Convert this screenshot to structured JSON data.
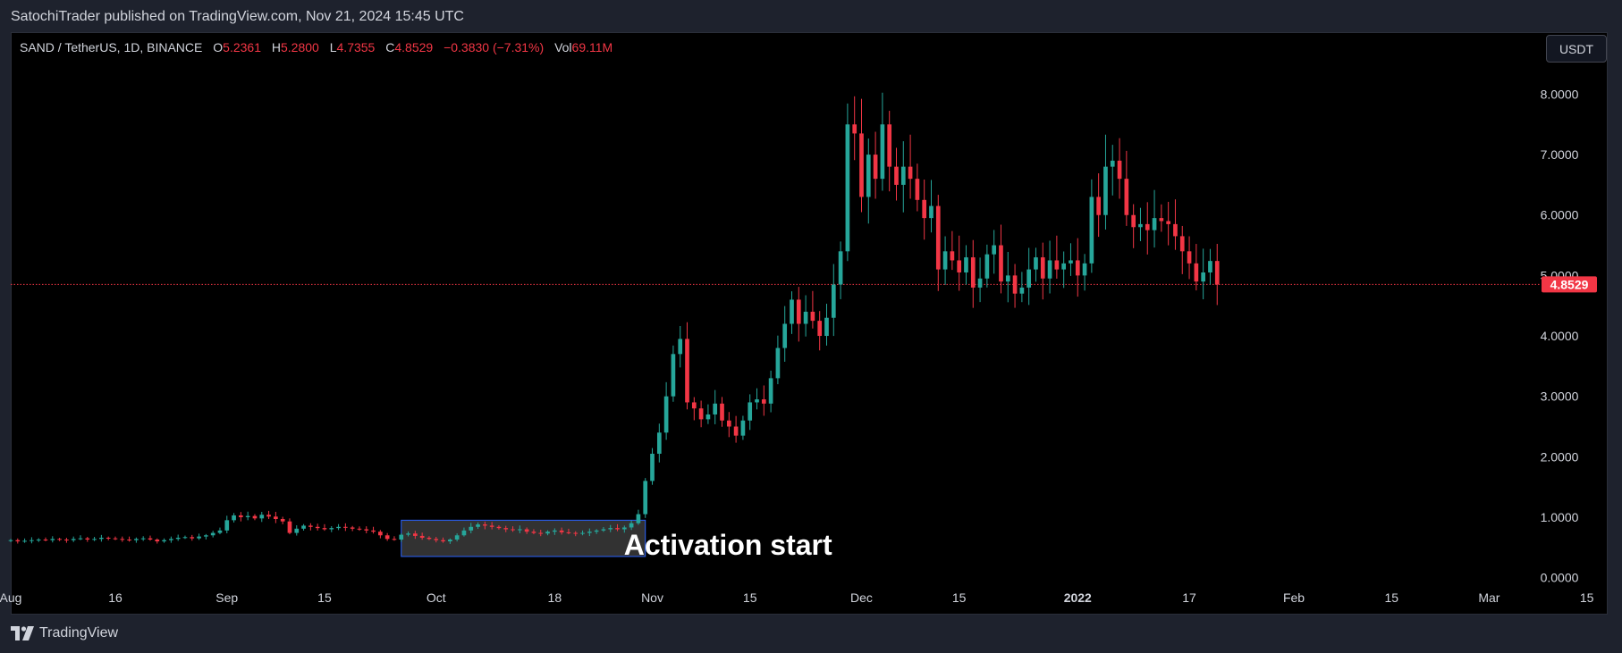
{
  "header": {
    "publisher": "SatochiTrader published on TradingView.com, Nov 21, 2024 15:45 UTC"
  },
  "legend": {
    "symbol": "SAND / TetherUS, 1D, BINANCE",
    "open_label": "O",
    "open": "5.2361",
    "high_label": "H",
    "high": "5.2800",
    "low_label": "L",
    "low": "4.7355",
    "close_label": "C",
    "close": "4.8529",
    "change": "−0.3830 (−7.31%)",
    "vol_label": "Vol",
    "vol": "69.11M"
  },
  "currency_button": "USDT",
  "footer": {
    "brand": "TradingView"
  },
  "colors": {
    "up": "#26a69a",
    "down": "#f23645",
    "background": "#000000",
    "text": "#d1d4dc",
    "annotation_box": "#3b3b3b",
    "annotation_border": "#2962ff"
  },
  "chart_data": {
    "type": "candlestick",
    "title": "",
    "y_axis_side": "right",
    "ylim": [
      -0.05,
      8.45
    ],
    "y_ticks": [
      "8.0000",
      "7.0000",
      "6.0000",
      "5.0000",
      "4.0000",
      "3.0000",
      "2.0000",
      "1.0000",
      "0.0000"
    ],
    "x_range": [
      "2021-08-01",
      "2022-03-18"
    ],
    "x_ticks": [
      {
        "label": "Aug",
        "date": "2021-08-01"
      },
      {
        "label": "16",
        "date": "2021-08-16"
      },
      {
        "label": "Sep",
        "date": "2021-09-01"
      },
      {
        "label": "15",
        "date": "2021-09-15"
      },
      {
        "label": "Oct",
        "date": "2021-10-01"
      },
      {
        "label": "18",
        "date": "2021-10-18"
      },
      {
        "label": "Nov",
        "date": "2021-11-01"
      },
      {
        "label": "15",
        "date": "2021-11-15"
      },
      {
        "label": "Dec",
        "date": "2021-12-01"
      },
      {
        "label": "15",
        "date": "2021-12-15"
      },
      {
        "label": "2022",
        "date": "2022-01-01",
        "bold": true
      },
      {
        "label": "17",
        "date": "2022-01-17"
      },
      {
        "label": "Feb",
        "date": "2022-02-01"
      },
      {
        "label": "15",
        "date": "2022-02-15"
      },
      {
        "label": "Mar",
        "date": "2022-03-01"
      },
      {
        "label": "15",
        "date": "2022-03-15"
      }
    ],
    "last_price": {
      "value": 4.8529,
      "label": "4.8529"
    },
    "annotation": {
      "text": "Activation start",
      "box_from": "2021-09-26",
      "box_to": "2021-10-31",
      "box_low": 0.35,
      "box_high": 0.95
    },
    "start_date": "2021-08-01",
    "closes": [
      0.62,
      0.6,
      0.61,
      0.62,
      0.63,
      0.62,
      0.64,
      0.63,
      0.62,
      0.64,
      0.65,
      0.63,
      0.64,
      0.66,
      0.65,
      0.64,
      0.63,
      0.62,
      0.64,
      0.65,
      0.63,
      0.6,
      0.62,
      0.64,
      0.66,
      0.67,
      0.65,
      0.68,
      0.7,
      0.74,
      0.78,
      0.95,
      1.03,
      1.0,
      1.02,
      0.98,
      1.04,
      1.01,
      0.97,
      0.93,
      0.74,
      0.81,
      0.86,
      0.84,
      0.82,
      0.8,
      0.82,
      0.84,
      0.83,
      0.81,
      0.8,
      0.78,
      0.76,
      0.7,
      0.64,
      0.63,
      0.71,
      0.73,
      0.69,
      0.66,
      0.64,
      0.62,
      0.6,
      0.63,
      0.7,
      0.78,
      0.84,
      0.88,
      0.86,
      0.84,
      0.82,
      0.8,
      0.79,
      0.8,
      0.76,
      0.74,
      0.73,
      0.76,
      0.78,
      0.75,
      0.74,
      0.73,
      0.74,
      0.76,
      0.78,
      0.8,
      0.82,
      0.8,
      0.83,
      0.9,
      1.05,
      1.6,
      2.05,
      2.4,
      3.0,
      3.7,
      3.95,
      2.9,
      2.8,
      2.62,
      2.7,
      2.88,
      2.6,
      2.5,
      2.35,
      2.6,
      2.9,
      2.95,
      2.88,
      3.3,
      3.8,
      4.2,
      4.6,
      4.2,
      4.4,
      4.25,
      4.0,
      4.3,
      4.85,
      5.4,
      7.5,
      7.35,
      6.3,
      7.0,
      6.6,
      7.5,
      6.8,
      6.5,
      6.8,
      6.6,
      6.25,
      5.95,
      6.15,
      5.1,
      5.4,
      5.25,
      5.05,
      5.3,
      4.8,
      4.95,
      5.35,
      5.5,
      4.9,
      5.0,
      4.7,
      4.8,
      5.1,
      5.3,
      4.95,
      5.25,
      5.1,
      5.2,
      5.25,
      5.0,
      5.2,
      6.3,
      6.0,
      6.8,
      6.9,
      6.6,
      6.0,
      5.8,
      5.85,
      5.75,
      5.95,
      5.9,
      5.85,
      5.65,
      5.4,
      5.2,
      4.9,
      5.05,
      5.24,
      4.85
    ]
  }
}
